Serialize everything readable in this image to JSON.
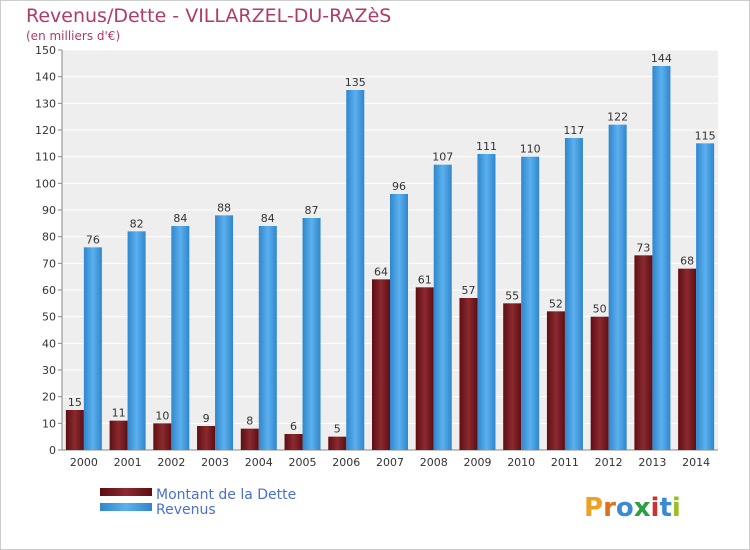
{
  "chart_data": {
    "type": "bar",
    "title": "Revenus/Dette - VILLARZEL-DU-RAZèS",
    "subtitle": "(en milliers d'€)",
    "categories": [
      "2000",
      "2001",
      "2002",
      "2003",
      "2004",
      "2005",
      "2006",
      "2007",
      "2008",
      "2009",
      "2010",
      "2011",
      "2012",
      "2013",
      "2014"
    ],
    "series": [
      {
        "name": "Montant de la Dette",
        "color": "#7a1f24",
        "values": [
          15,
          11,
          10,
          9,
          8,
          6,
          5,
          64,
          61,
          57,
          55,
          52,
          50,
          73,
          68
        ]
      },
      {
        "name": "Revenus",
        "color": "#4a9fe0",
        "values": [
          76,
          82,
          84,
          88,
          84,
          87,
          135,
          96,
          107,
          111,
          110,
          117,
          122,
          144,
          115
        ]
      }
    ],
    "ylim": [
      0,
      150
    ],
    "yticks": [
      0,
      10,
      20,
      30,
      40,
      50,
      60,
      70,
      80,
      90,
      100,
      110,
      120,
      130,
      140,
      150
    ],
    "grid": true,
    "legend_position": "bottom-left"
  },
  "logo": {
    "text": "Proxiti",
    "letters": [
      "P",
      "r",
      "o",
      "x",
      "i",
      "t",
      "i"
    ],
    "colors": [
      "#f0a020",
      "#e0701a",
      "#3a8ad8",
      "#2aa040",
      "#d03030",
      "#3a8ad8",
      "#9ac020"
    ]
  }
}
